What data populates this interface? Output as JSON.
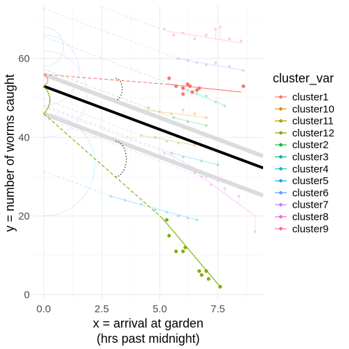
{
  "chart_data": {
    "type": "scatter",
    "title": "",
    "xlabel_lines": [
      "x = arrival at garden",
      "(hrs past midnight)"
    ],
    "ylabel": "y = number of worms caught",
    "xlim": [
      -0.45,
      9.45
    ],
    "ylim": [
      -1.5,
      73.5
    ],
    "x_ticks": [
      0.0,
      2.5,
      5.0,
      7.5
    ],
    "x_tick_labels": [
      "0.0",
      "2.5",
      "5.0",
      "7.5"
    ],
    "y_ticks": [
      0,
      20,
      40,
      60
    ],
    "y_tick_labels": [
      "0",
      "20",
      "40",
      "60"
    ],
    "grid": true,
    "legend": {
      "title": "cluster_var",
      "placement": "right",
      "entries": [
        "cluster1",
        "cluster10",
        "cluster11",
        "cluster12",
        "cluster2",
        "cluster3",
        "cluster4",
        "cluster5",
        "cluster6",
        "cluster7",
        "cluster8",
        "cluster9"
      ]
    },
    "overall_fit": {
      "intercept": 53.0,
      "slope": -2.2,
      "x_range": [
        0,
        9.45
      ],
      "color": "#000000"
    },
    "group_bands": [
      {
        "intercept": 56.0,
        "slope": -2.2,
        "x_range": [
          0,
          9.45
        ],
        "color": "#dcdcdc"
      },
      {
        "intercept": 46.0,
        "slope": -2.2,
        "x_range": [
          0,
          9.45
        ],
        "color": "#dcdcdc"
      }
    ],
    "highlighted_series": [
      {
        "name": "cluster1",
        "color": "#F8766D",
        "intercept": 56.0,
        "fit_x": [
          5.3,
          8.5
        ],
        "fit_y": [
          53.5,
          51.5
        ],
        "points": [
          [
            5.4,
            55.0
          ],
          [
            5.7,
            53.0
          ],
          [
            6.0,
            52.5
          ],
          [
            6.2,
            53.5
          ],
          [
            6.3,
            53.0
          ],
          [
            6.4,
            51.5
          ],
          [
            6.6,
            52.0
          ],
          [
            8.6,
            53.0
          ],
          [
            6.0,
            51.0
          ],
          [
            6.7,
            52.5
          ]
        ]
      },
      {
        "name": "cluster12",
        "color": "#7CAE00",
        "intercept": 46.0,
        "fit_x": [
          5.1,
          7.6
        ],
        "fit_y": [
          19.5,
          2.0
        ],
        "points": [
          [
            5.4,
            15.0
          ],
          [
            5.7,
            11.0
          ],
          [
            6.1,
            12.0
          ],
          [
            6.0,
            11.0
          ],
          [
            6.7,
            6.0
          ],
          [
            6.8,
            5.0
          ],
          [
            7.0,
            6.0
          ],
          [
            7.1,
            4.0
          ],
          [
            7.6,
            2.0
          ],
          [
            5.3,
            19.0
          ]
        ]
      }
    ],
    "faint_series": [
      {
        "name": "cluster9",
        "color": "#FF61C3",
        "fit_x": [
          5.3,
          8.5
        ],
        "fit_y": [
          67.0,
          64.0
        ],
        "points": [
          [
            5.2,
            67.5
          ],
          [
            5.6,
            66.0
          ],
          [
            6.0,
            66.5
          ],
          [
            6.5,
            65.0
          ],
          [
            7.0,
            66.0
          ],
          [
            7.4,
            67.5
          ],
          [
            7.6,
            68.0
          ],
          [
            8.0,
            65.0
          ],
          [
            8.5,
            64.5
          ]
        ]
      },
      {
        "name": "cluster6",
        "color": "#619CFF",
        "fit_x": [
          5.8,
          8.6
        ],
        "fit_y": [
          60.0,
          57.0
        ],
        "points": [
          [
            5.8,
            60.0
          ],
          [
            6.2,
            59.5
          ],
          [
            6.6,
            59.0
          ],
          [
            7.0,
            58.5
          ],
          [
            7.4,
            59.0
          ],
          [
            8.0,
            58.0
          ],
          [
            8.6,
            57.0
          ]
        ]
      },
      {
        "name": "cluster3",
        "color": "#00BFC4",
        "fit_x": [
          6.2,
          7.8
        ],
        "fit_y": [
          52.0,
          48.0
        ],
        "points": [
          [
            6.2,
            52.0
          ],
          [
            6.6,
            51.0
          ],
          [
            7.0,
            50.5
          ],
          [
            7.4,
            49.0
          ],
          [
            7.8,
            48.0
          ]
        ]
      },
      {
        "name": "cluster10",
        "color": "#DE8C00",
        "fit_x": [
          4.3,
          7.0
        ],
        "fit_y": [
          47.0,
          45.0
        ],
        "points": [
          [
            4.5,
            47.5
          ],
          [
            5.0,
            46.5
          ],
          [
            5.5,
            46.0
          ],
          [
            6.0,
            47.0
          ],
          [
            6.5,
            46.0
          ],
          [
            7.0,
            45.0
          ]
        ]
      },
      {
        "name": "cluster11",
        "color": "#B79F00",
        "fit_x": [
          4.2,
          6.5
        ],
        "fit_y": [
          40.5,
          38.0
        ],
        "points": [
          [
            4.2,
            40.5
          ],
          [
            4.8,
            40.0
          ],
          [
            5.3,
            39.0
          ],
          [
            5.8,
            38.5
          ],
          [
            6.5,
            38.0
          ]
        ]
      },
      {
        "name": "cluster7",
        "color": "#C77CFF",
        "fit_x": [
          5.3,
          7.5
        ],
        "fit_y": [
          36.0,
          29.0
        ],
        "points": [
          [
            5.2,
            36.0
          ],
          [
            5.6,
            34.0
          ],
          [
            6.0,
            33.0
          ],
          [
            6.5,
            31.0
          ],
          [
            7.0,
            30.0
          ],
          [
            7.5,
            29.0
          ]
        ]
      },
      {
        "name": "cluster8",
        "color": "#F564E3",
        "fit_x": [
          6.8,
          9.1
        ],
        "fit_y": [
          30.0,
          20.0
        ],
        "points": [
          [
            6.8,
            30.0
          ],
          [
            7.2,
            28.0
          ],
          [
            7.8,
            27.0
          ],
          [
            8.4,
            25.0
          ],
          [
            9.1,
            16.0
          ]
        ]
      },
      {
        "name": "cluster4",
        "color": "#00B6EB",
        "fit_x": [
          2.9,
          6.6
        ],
        "fit_y": [
          25.0,
          19.0
        ],
        "points": [
          [
            2.9,
            25.0
          ],
          [
            3.5,
            24.0
          ],
          [
            4.2,
            23.0
          ],
          [
            4.8,
            21.5
          ],
          [
            5.3,
            21.0
          ],
          [
            5.8,
            20.0
          ],
          [
            6.2,
            19.5
          ],
          [
            6.6,
            19.0
          ]
        ]
      },
      {
        "name": "cluster5",
        "color": "#00C08B",
        "fit_x": [
          5.5,
          7.5
        ],
        "fit_y": [
          36.0,
          33.0
        ],
        "points": [
          [
            5.5,
            36.0
          ],
          [
            6.0,
            35.0
          ],
          [
            6.8,
            34.0
          ],
          [
            7.5,
            33.0
          ]
        ]
      },
      {
        "name": "cluster2",
        "color": "#00BA38",
        "fit_x": [
          5.6,
          7.0
        ],
        "fit_y": [
          45.0,
          43.0
        ],
        "points": [
          [
            5.6,
            45.0
          ],
          [
            6.2,
            44.0
          ],
          [
            7.0,
            43.0
          ]
        ]
      }
    ]
  }
}
